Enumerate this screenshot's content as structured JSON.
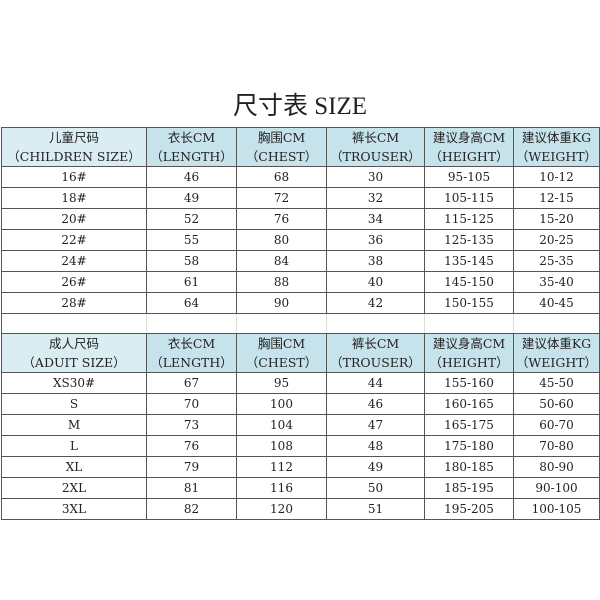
{
  "title": "尺寸表 SIZE",
  "colors": {
    "header_bg": "#c6e3ec",
    "border": "#555555"
  },
  "children": {
    "headers": [
      [
        "儿童尺码",
        "（CHILDREN SIZE）"
      ],
      [
        "衣长CM",
        "（LENGTH）"
      ],
      [
        "胸围CM",
        "（CHEST）"
      ],
      [
        "裤长CM",
        "（TROUSER）"
      ],
      [
        "建议身高CM",
        "（HEIGHT）"
      ],
      [
        "建议体重KG",
        "（WEIGHT）"
      ]
    ],
    "rows": [
      [
        "16#",
        "46",
        "68",
        "30",
        "95-105",
        "10-12"
      ],
      [
        "18#",
        "49",
        "72",
        "32",
        "105-115",
        "12-15"
      ],
      [
        "20#",
        "52",
        "76",
        "34",
        "115-125",
        "15-20"
      ],
      [
        "22#",
        "55",
        "80",
        "36",
        "125-135",
        "20-25"
      ],
      [
        "24#",
        "58",
        "84",
        "38",
        "135-145",
        "25-35"
      ],
      [
        "26#",
        "61",
        "88",
        "40",
        "145-150",
        "35-40"
      ],
      [
        "28#",
        "64",
        "90",
        "42",
        "150-155",
        "40-45"
      ]
    ]
  },
  "adult": {
    "headers": [
      [
        "成人尺码",
        "（ADUIT SIZE）"
      ],
      [
        "衣长CM",
        "（LENGTH）"
      ],
      [
        "胸围CM",
        "（CHEST）"
      ],
      [
        "裤长CM",
        "（TROUSER）"
      ],
      [
        "建议身高CM",
        "（HEIGHT）"
      ],
      [
        "建议体重KG",
        "（WEIGHT）"
      ]
    ],
    "rows": [
      [
        "XS30#",
        "67",
        "95",
        "44",
        "155-160",
        "45-50"
      ],
      [
        "S",
        "70",
        "100",
        "46",
        "160-165",
        "50-60"
      ],
      [
        "M",
        "73",
        "104",
        "47",
        "165-175",
        "60-70"
      ],
      [
        "L",
        "76",
        "108",
        "48",
        "175-180",
        "70-80"
      ],
      [
        "XL",
        "79",
        "112",
        "49",
        "180-185",
        "80-90"
      ],
      [
        "2XL",
        "81",
        "116",
        "50",
        "185-195",
        "90-100"
      ],
      [
        "3XL",
        "82",
        "120",
        "51",
        "195-205",
        "100-105"
      ]
    ]
  }
}
